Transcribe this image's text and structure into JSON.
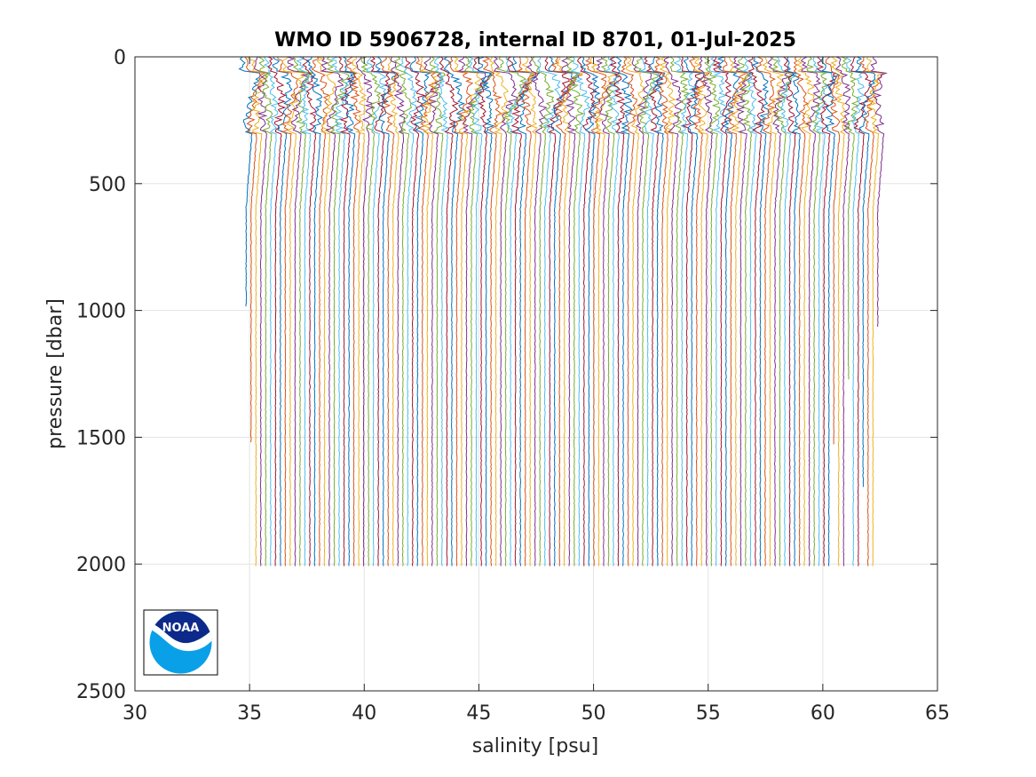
{
  "chart_data": {
    "type": "line",
    "title": "WMO ID 5906728, internal ID 8701, 01-Jul-2025",
    "xlabel": "salinity [psu]",
    "ylabel": "pressure [dbar]",
    "xlim": [
      30,
      65
    ],
    "ylim": [
      0,
      2500
    ],
    "y_reversed": true,
    "x_ticks": [
      "30",
      "35",
      "40",
      "45",
      "50",
      "55",
      "60",
      "65"
    ],
    "y_ticks": [
      "0",
      "500",
      "1000",
      "1500",
      "2000",
      "2500"
    ],
    "grid": true,
    "profile_count": 130,
    "profile_offset_step_psu": 0.2,
    "first_profile_deep_salinity": 34.85,
    "last_profile_deep_salinity": 62.4,
    "typical_max_pressure_dbar": 2010,
    "colors": [
      "#0072BD",
      "#D95319",
      "#EDB120",
      "#7E2F8E",
      "#77AC30",
      "#4DBEEE",
      "#A2142F"
    ]
  },
  "logo": {
    "name": "NOAA",
    "text": "NOAA",
    "colors": {
      "navy": "#0b2a8a",
      "sky": "#0aa0e8"
    }
  }
}
